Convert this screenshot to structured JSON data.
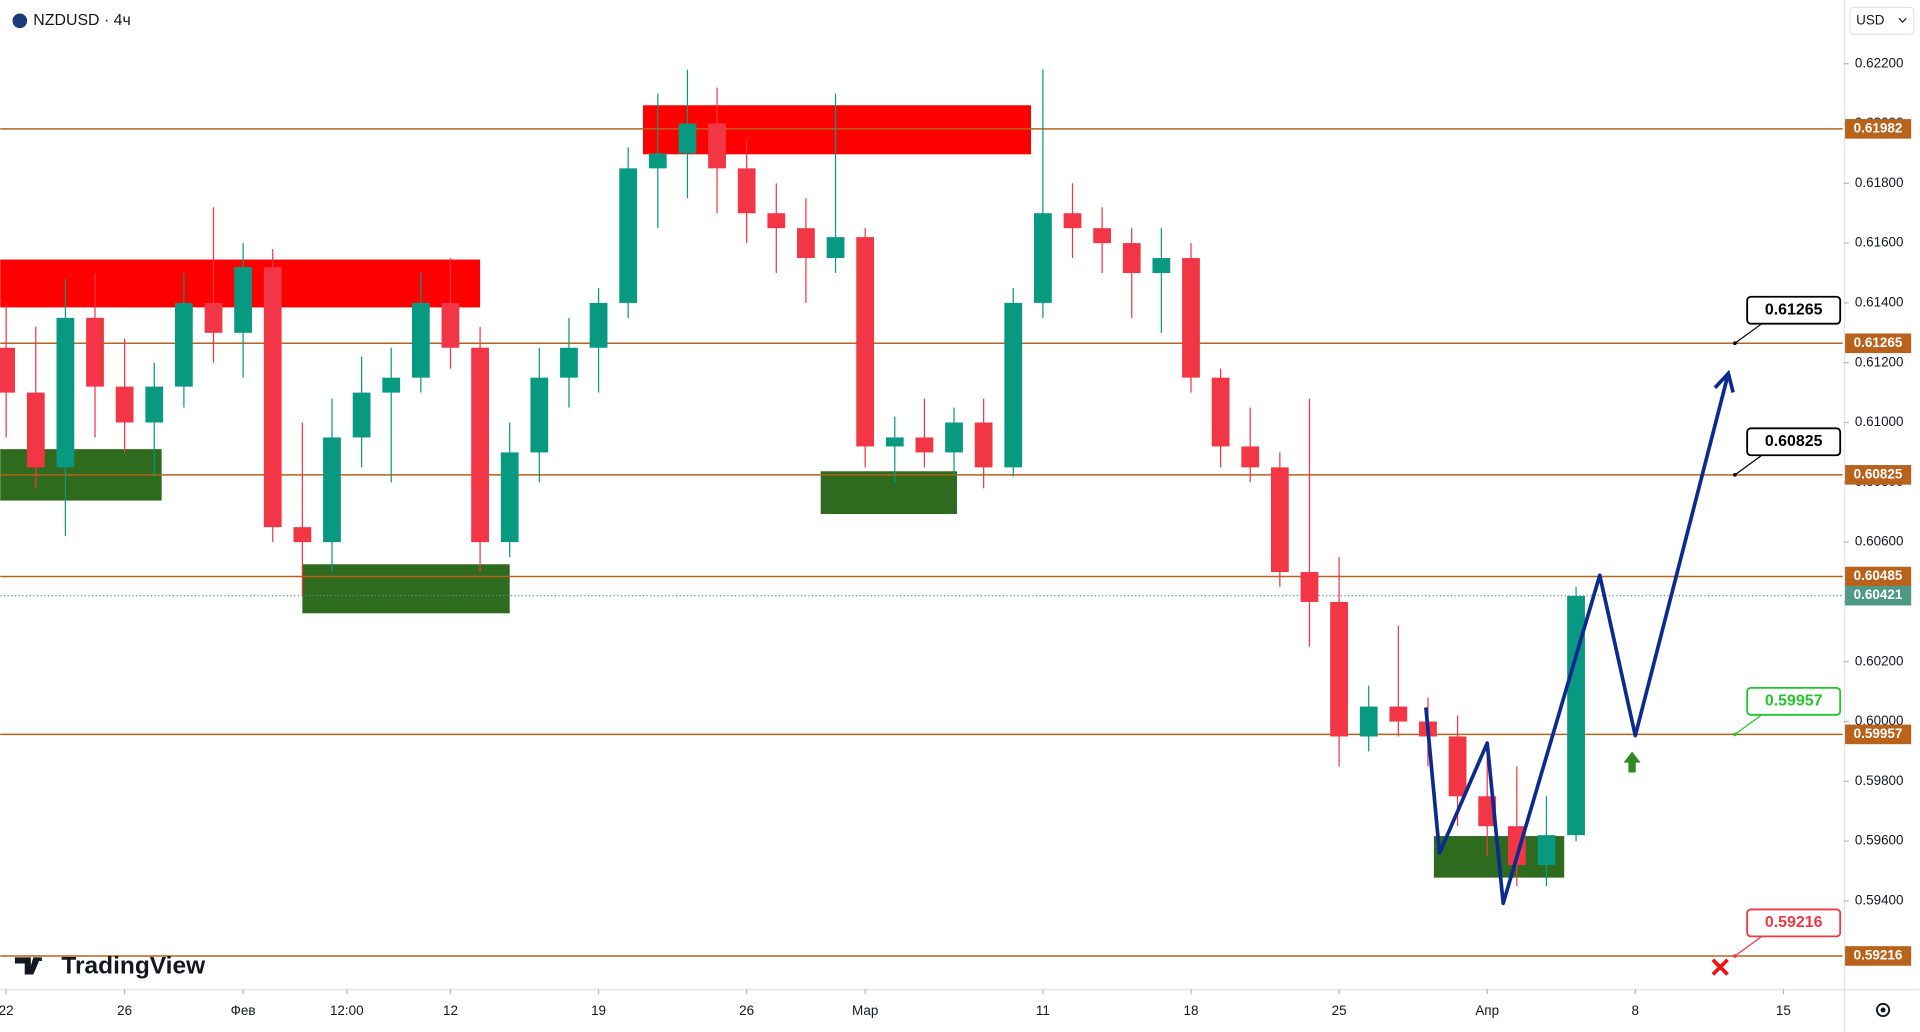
{
  "header": {
    "symbol": "NZDUSD · 4ч",
    "currency": "USD",
    "watermark": "TradingView"
  },
  "chart_data": {
    "type": "candlestick",
    "up_color": "#089981",
    "down_color": "#f23645",
    "x": [
      0,
      1,
      2,
      3,
      4,
      5,
      6,
      7,
      8,
      9,
      10,
      11,
      12,
      13,
      14,
      15,
      16,
      17,
      18,
      19,
      20,
      21,
      22,
      23,
      24,
      25,
      26,
      27,
      28,
      29,
      30,
      31,
      32,
      33,
      34,
      35,
      36,
      37,
      38,
      39,
      40,
      41,
      42,
      43,
      44,
      45,
      46,
      47,
      48,
      49,
      50,
      51,
      52,
      53
    ],
    "open": [
      0.6125,
      0.611,
      0.6085,
      0.6135,
      0.6112,
      0.61,
      0.6112,
      0.614,
      0.613,
      0.6152,
      0.6065,
      0.606,
      0.6095,
      0.611,
      0.6115,
      0.614,
      0.6125,
      0.606,
      0.609,
      0.6115,
      0.6125,
      0.614,
      0.6185,
      0.619,
      0.62,
      0.6185,
      0.617,
      0.6165,
      0.6155,
      0.6162,
      0.6092,
      0.6095,
      0.609,
      0.61,
      0.6085,
      0.614,
      0.617,
      0.6165,
      0.616,
      0.615,
      0.6155,
      0.6115,
      0.6092,
      0.6085,
      0.605,
      0.604,
      0.5995,
      0.6005,
      0.6,
      0.5995,
      0.5975,
      0.5965,
      0.5952,
      0.5962
    ],
    "high": [
      0.614,
      0.6132,
      0.6148,
      0.615,
      0.6128,
      0.612,
      0.615,
      0.6172,
      0.616,
      0.6158,
      0.61,
      0.6108,
      0.6122,
      0.6125,
      0.615,
      0.6155,
      0.6132,
      0.61,
      0.6125,
      0.6135,
      0.6145,
      0.6192,
      0.621,
      0.6218,
      0.6212,
      0.6195,
      0.618,
      0.6175,
      0.621,
      0.6165,
      0.6102,
      0.6108,
      0.6105,
      0.6108,
      0.6145,
      0.6218,
      0.618,
      0.6172,
      0.6165,
      0.6165,
      0.616,
      0.6118,
      0.6105,
      0.609,
      0.6108,
      0.6055,
      0.6012,
      0.6032,
      0.6008,
      0.6002,
      0.599,
      0.5985,
      0.5975,
      0.6045
    ],
    "low": [
      0.6095,
      0.6078,
      0.6062,
      0.6095,
      0.609,
      0.6082,
      0.6105,
      0.612,
      0.6115,
      0.606,
      0.6042,
      0.605,
      0.6085,
      0.608,
      0.611,
      0.6118,
      0.605,
      0.6055,
      0.608,
      0.6105,
      0.611,
      0.6135,
      0.6165,
      0.6175,
      0.617,
      0.616,
      0.615,
      0.614,
      0.615,
      0.6085,
      0.608,
      0.6085,
      0.6082,
      0.6078,
      0.6082,
      0.6135,
      0.6155,
      0.615,
      0.6135,
      0.613,
      0.611,
      0.6085,
      0.608,
      0.6045,
      0.6025,
      0.5985,
      0.599,
      0.5995,
      0.5985,
      0.5965,
      0.5955,
      0.5945,
      0.5945,
      0.596
    ],
    "close": [
      0.611,
      0.6085,
      0.6135,
      0.6112,
      0.61,
      0.6112,
      0.614,
      0.613,
      0.6152,
      0.6065,
      0.606,
      0.6095,
      0.611,
      0.6115,
      0.614,
      0.6125,
      0.606,
      0.609,
      0.6115,
      0.6125,
      0.614,
      0.6185,
      0.619,
      0.62,
      0.6185,
      0.617,
      0.6165,
      0.6155,
      0.6162,
      0.6092,
      0.6095,
      0.609,
      0.61,
      0.6085,
      0.614,
      0.617,
      0.6165,
      0.616,
      0.615,
      0.6155,
      0.6115,
      0.6092,
      0.6085,
      0.605,
      0.604,
      0.5995,
      0.6005,
      0.6,
      0.5995,
      0.5975,
      0.5965,
      0.5952,
      0.5962,
      0.6042
    ],
    "xlim": [
      -0.2,
      62
    ],
    "ylim": [
      0.59105,
      0.62413
    ],
    "xticks": [
      {
        "value": 0,
        "label": "22"
      },
      {
        "value": 4,
        "label": "26"
      },
      {
        "value": 8,
        "label": "Фев"
      },
      {
        "value": 11.5,
        "label": "12:00"
      },
      {
        "value": 15,
        "label": "12"
      },
      {
        "value": 20,
        "label": "19"
      },
      {
        "value": 25,
        "label": "26"
      },
      {
        "value": 29,
        "label": "Мар"
      },
      {
        "value": 35,
        "label": "11"
      },
      {
        "value": 40,
        "label": "18"
      },
      {
        "value": 45,
        "label": "25"
      },
      {
        "value": 50,
        "label": "Апр"
      },
      {
        "value": 55,
        "label": "8"
      },
      {
        "value": 60,
        "label": "15"
      }
    ],
    "yticks": [
      {
        "value": 0.622,
        "label": "0.62200"
      },
      {
        "value": 0.62,
        "label": "0.62000"
      },
      {
        "value": 0.618,
        "label": "0.61800"
      },
      {
        "value": 0.616,
        "label": "0.61600"
      },
      {
        "value": 0.614,
        "label": "0.61400"
      },
      {
        "value": 0.612,
        "label": "0.61200"
      },
      {
        "value": 0.61,
        "label": "0.61000"
      },
      {
        "value": 0.608,
        "label": "0.60800"
      },
      {
        "value": 0.606,
        "label": "0.60600"
      },
      {
        "value": 0.604,
        "label": "0.60400"
      },
      {
        "value": 0.602,
        "label": "0.60200"
      },
      {
        "value": 0.6,
        "label": "0.60000"
      },
      {
        "value": 0.598,
        "label": "0.59800"
      },
      {
        "value": 0.596,
        "label": "0.59600"
      },
      {
        "value": 0.594,
        "label": "0.59400"
      }
    ],
    "last_price": {
      "value": 0.60421,
      "label": "0.60421",
      "color": "#4e9a84"
    },
    "level_color": "#b8621b",
    "levels": [
      {
        "value": 0.61982,
        "label": "0.61982"
      },
      {
        "value": 0.61265,
        "label": "0.61265"
      },
      {
        "value": 0.60825,
        "label": "0.60825"
      },
      {
        "value": 0.60485,
        "label": "0.60485"
      },
      {
        "value": 0.59957,
        "label": "0.59957"
      },
      {
        "value": 0.59216,
        "label": "0.59216"
      }
    ],
    "callouts": [
      {
        "value": 0.61265,
        "label": "0.61265",
        "color": "#000000"
      },
      {
        "value": 0.60825,
        "label": "0.60825",
        "color": "#000000"
      },
      {
        "value": 0.59957,
        "label": "0.59957",
        "color": "#22c72a"
      },
      {
        "value": 0.59216,
        "label": "0.59216",
        "color": "#f23645"
      }
    ],
    "zones": [
      {
        "kind": "supply",
        "color": "#ff0000",
        "x0": -0.2,
        "x1": 16.0,
        "top": 0.61545,
        "bottom": 0.61385
      },
      {
        "kind": "supply",
        "color": "#ff0000",
        "x0": 21.5,
        "x1": 34.6,
        "top": 0.62061,
        "bottom": 0.61897
      },
      {
        "kind": "demand",
        "color": "#2e6b1f",
        "x0": -0.2,
        "x1": 5.25,
        "top": 0.60911,
        "bottom": 0.60739
      },
      {
        "kind": "demand",
        "color": "#2e6b1f",
        "x0": 10.0,
        "x1": 17.0,
        "top": 0.60526,
        "bottom": 0.60362
      },
      {
        "kind": "demand",
        "color": "#2e6b1f",
        "x0": 27.5,
        "x1": 32.1,
        "top": 0.60837,
        "bottom": 0.60694
      },
      {
        "kind": "demand",
        "color": "#2e6b1f",
        "x0": 48.2,
        "x1": 52.6,
        "top": 0.59617,
        "bottom": 0.59478
      }
    ],
    "projection": {
      "color": "#0d2a8f",
      "x": [
        47.93,
        48.39,
        50.0,
        50.54,
        53.8,
        55.0,
        58.14
      ],
      "y": [
        0.60047,
        0.5956,
        0.59928,
        0.59392,
        0.60489,
        0.59953,
        0.61164
      ]
    }
  }
}
